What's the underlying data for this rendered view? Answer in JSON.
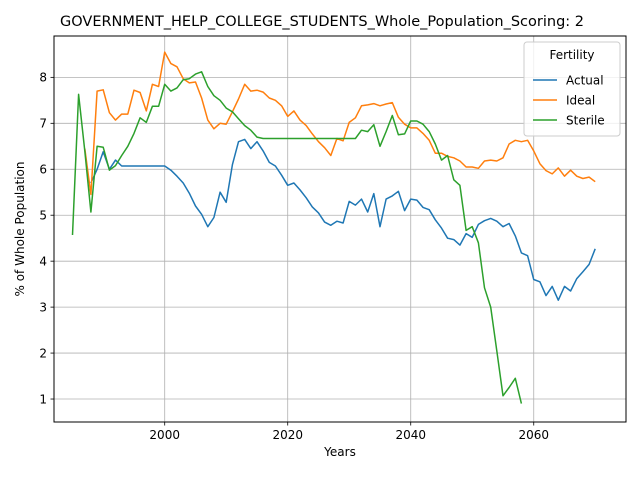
{
  "chart_data": {
    "type": "line",
    "title": "GOVERNMENT_HELP_COLLEGE_STUDENTS_Whole_Population_Scoring: 2",
    "xlabel": "Years",
    "ylabel": "% of Whole Population",
    "xlim": [
      1982,
      2075
    ],
    "ylim": [
      0.5,
      8.9
    ],
    "xticks": [
      2000,
      2020,
      2040,
      2060
    ],
    "yticks": [
      1,
      2,
      3,
      4,
      5,
      6,
      7,
      8
    ],
    "grid": true,
    "legend": {
      "title": "Fertility",
      "placement": "top-right"
    },
    "series": [
      {
        "name": "Actual",
        "color": "#1f77b4",
        "x": [
          1988,
          1989,
          1990,
          1991,
          1992,
          1993,
          1994,
          1995,
          1996,
          1997,
          1998,
          1999,
          2000,
          2001,
          2002,
          2003,
          2004,
          2005,
          2006,
          2007,
          2008,
          2009,
          2010,
          2011,
          2012,
          2013,
          2014,
          2015,
          2016,
          2017,
          2018,
          2019,
          2020,
          2021,
          2022,
          2023,
          2024,
          2025,
          2026,
          2027,
          2028,
          2029,
          2030,
          2031,
          2032,
          2033,
          2034,
          2035,
          2036,
          2037,
          2038,
          2039,
          2040,
          2041,
          2042,
          2043,
          2044,
          2045,
          2046,
          2047,
          2048,
          2049,
          2050,
          2051,
          2052,
          2053,
          2054,
          2055,
          2056,
          2057,
          2058,
          2059,
          2060,
          2061,
          2062,
          2063,
          2064,
          2065,
          2066,
          2067,
          2068,
          2069,
          2070
        ],
        "values": [
          5.7,
          6.0,
          6.38,
          6.0,
          6.2,
          6.07,
          6.07,
          6.07,
          6.07,
          6.07,
          6.07,
          6.07,
          6.07,
          5.98,
          5.85,
          5.7,
          5.48,
          5.2,
          5.02,
          4.75,
          4.95,
          5.5,
          5.28,
          6.1,
          6.6,
          6.65,
          6.45,
          6.6,
          6.4,
          6.15,
          6.07,
          5.87,
          5.65,
          5.7,
          5.55,
          5.38,
          5.18,
          5.05,
          4.85,
          4.78,
          4.87,
          4.83,
          5.3,
          5.22,
          5.35,
          5.07,
          5.47,
          4.75,
          5.35,
          5.42,
          5.52,
          5.1,
          5.35,
          5.33,
          5.17,
          5.12,
          4.9,
          4.72,
          4.5,
          4.47,
          4.35,
          4.6,
          4.52,
          4.8,
          4.88,
          4.93,
          4.87,
          4.75,
          4.82,
          4.55,
          4.18,
          4.12,
          3.6,
          3.55,
          3.25,
          3.45,
          3.15,
          3.45,
          3.35,
          3.62,
          3.77,
          3.93,
          4.27
        ]
      },
      {
        "name": "Ideal",
        "color": "#ff7f0e",
        "x": [
          1987,
          1988,
          1989,
          1990,
          1991,
          1992,
          1993,
          1994,
          1995,
          1996,
          1997,
          1998,
          1999,
          2000,
          2001,
          2002,
          2003,
          2004,
          2005,
          2006,
          2007,
          2008,
          2009,
          2010,
          2011,
          2012,
          2013,
          2014,
          2015,
          2016,
          2017,
          2018,
          2019,
          2020,
          2021,
          2022,
          2023,
          2024,
          2025,
          2026,
          2027,
          2028,
          2029,
          2030,
          2031,
          2032,
          2033,
          2034,
          2035,
          2036,
          2037,
          2038,
          2039,
          2040,
          2041,
          2042,
          2043,
          2044,
          2045,
          2046,
          2047,
          2048,
          2049,
          2050,
          2051,
          2052,
          2053,
          2054,
          2055,
          2056,
          2057,
          2058,
          2059,
          2060,
          2061,
          2062,
          2063,
          2064,
          2065,
          2066,
          2067,
          2068,
          2069,
          2070
        ],
        "values": [
          6.45,
          5.45,
          7.7,
          7.73,
          7.23,
          7.07,
          7.2,
          7.2,
          7.72,
          7.67,
          7.27,
          7.85,
          7.8,
          8.55,
          8.3,
          8.23,
          7.97,
          7.88,
          7.9,
          7.55,
          7.07,
          6.88,
          7.0,
          6.98,
          7.25,
          7.53,
          7.85,
          7.7,
          7.72,
          7.68,
          7.55,
          7.5,
          7.38,
          7.15,
          7.27,
          7.07,
          6.95,
          6.77,
          6.6,
          6.47,
          6.3,
          6.67,
          6.62,
          7.02,
          7.12,
          7.38,
          7.4,
          7.43,
          7.38,
          7.42,
          7.45,
          7.13,
          6.98,
          6.9,
          6.9,
          6.78,
          6.63,
          6.35,
          6.35,
          6.28,
          6.25,
          6.18,
          6.05,
          6.05,
          6.02,
          6.18,
          6.2,
          6.18,
          6.25,
          6.55,
          6.63,
          6.6,
          6.63,
          6.4,
          6.12,
          5.97,
          5.9,
          6.03,
          5.85,
          5.98,
          5.85,
          5.8,
          5.83,
          5.73
        ]
      },
      {
        "name": "Sterile",
        "color": "#2ca02c",
        "x": [
          1985,
          1986,
          1987,
          1988,
          1989,
          1990,
          1991,
          1992,
          1993,
          1994,
          1995,
          1996,
          1997,
          1998,
          1999,
          2000,
          2001,
          2002,
          2003,
          2004,
          2005,
          2006,
          2007,
          2008,
          2009,
          2010,
          2011,
          2012,
          2013,
          2014,
          2015,
          2016,
          2017,
          2018,
          2019,
          2020,
          2021,
          2022,
          2023,
          2024,
          2025,
          2026,
          2027,
          2028,
          2029,
          2030,
          2031,
          2032,
          2033,
          2034,
          2035,
          2036,
          2037,
          2038,
          2039,
          2040,
          2041,
          2042,
          2043,
          2044,
          2045,
          2046,
          2047,
          2048,
          2049,
          2050,
          2051,
          2052,
          2053,
          2054,
          2055,
          2056,
          2057,
          2058
        ],
        "values": [
          4.57,
          7.63,
          6.4,
          5.07,
          6.5,
          6.48,
          5.98,
          6.08,
          6.3,
          6.5,
          6.78,
          7.12,
          7.02,
          7.37,
          7.37,
          7.85,
          7.7,
          7.77,
          7.95,
          7.97,
          8.07,
          8.12,
          7.8,
          7.6,
          7.5,
          7.33,
          7.25,
          7.1,
          6.95,
          6.85,
          6.7,
          6.67,
          6.67,
          6.67,
          6.67,
          6.67,
          6.67,
          6.67,
          6.67,
          6.67,
          6.67,
          6.67,
          6.67,
          6.67,
          6.67,
          6.67,
          6.67,
          6.85,
          6.82,
          6.97,
          6.5,
          6.82,
          7.17,
          6.75,
          6.77,
          7.05,
          7.05,
          6.98,
          6.82,
          6.55,
          6.2,
          6.3,
          5.77,
          5.65,
          4.67,
          4.75,
          4.4,
          3.42,
          3.0,
          2.05,
          1.07,
          1.25,
          1.45,
          0.9
        ]
      }
    ]
  }
}
